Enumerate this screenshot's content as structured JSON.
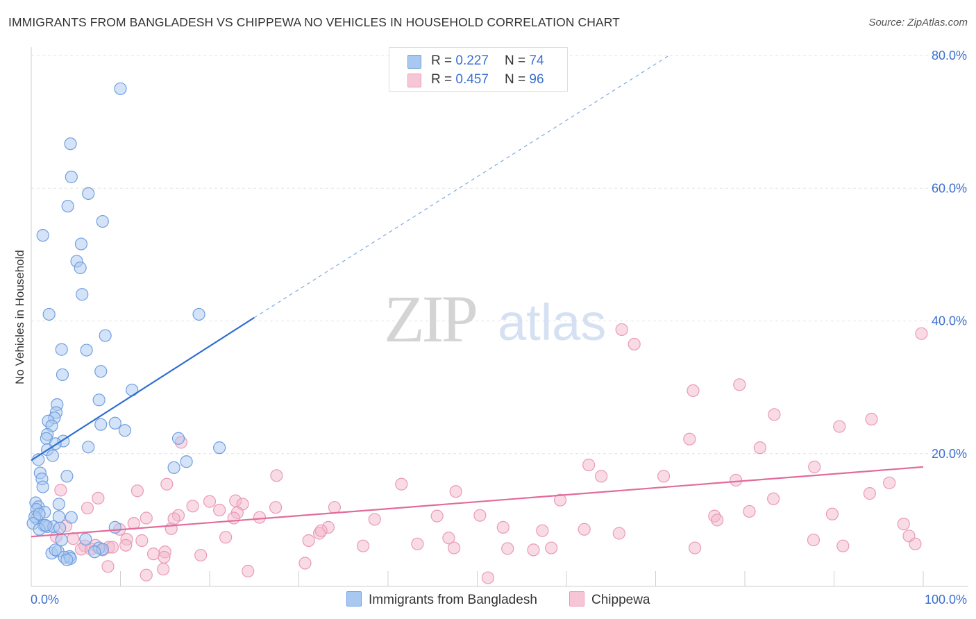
{
  "title": "IMMIGRANTS FROM BANGLADESH VS CHIPPEWA NO VEHICLES IN HOUSEHOLD CORRELATION CHART",
  "source": "Source: ZipAtlas.com",
  "watermark": {
    "zip": "ZIP",
    "atlas": "atlas"
  },
  "legend": {
    "rows": [
      {
        "r_label": "R =",
        "r_value": "0.227",
        "n_label": "N =",
        "n_value": "74"
      },
      {
        "r_label": "R =",
        "r_value": "0.457",
        "n_label": "N =",
        "n_value": "96"
      }
    ]
  },
  "chart_data": {
    "type": "scatter",
    "title": "IMMIGRANTS FROM BANGLADESH VS CHIPPEWA NO VEHICLES IN HOUSEHOLD CORRELATION CHART",
    "ylabel": "No Vehicles in Household",
    "xlabel": "",
    "xlim": [
      0,
      100
    ],
    "ylim": [
      0,
      80
    ],
    "x_tick_labels": [
      "0.0%",
      "100.0%"
    ],
    "y_ticks": [
      20,
      40,
      60,
      80
    ],
    "y_tick_labels": [
      "20.0%",
      "40.0%",
      "60.0%",
      "80.0%"
    ],
    "grid": true,
    "legend_position": "top-center",
    "colors": {
      "blue": "#3b78d8",
      "blue_fill": "#a9c8f0",
      "pink": "#e26b9a",
      "pink_fill": "#f4b8cc",
      "tick": "#3b6fd0"
    },
    "series": [
      {
        "name": "Immigrants from Bangladesh",
        "color": "blue",
        "r": 0.227,
        "n": 74,
        "trend": {
          "x0": 0,
          "y0": 19.0,
          "x1": 25.0,
          "y1": 40.5,
          "dash_to_x": 71.5,
          "dash_to_y": 80.0
        },
        "points": [
          [
            10,
            75
          ],
          [
            4.4,
            66.7
          ],
          [
            4.5,
            61.7
          ],
          [
            6.4,
            59.2
          ],
          [
            4.1,
            57.3
          ],
          [
            8,
            55
          ],
          [
            1.3,
            52.9
          ],
          [
            5.6,
            51.6
          ],
          [
            5.1,
            49
          ],
          [
            5.5,
            48
          ],
          [
            5.7,
            44
          ],
          [
            2,
            41
          ],
          [
            18.8,
            41
          ],
          [
            8.3,
            37.8
          ],
          [
            3.4,
            35.7
          ],
          [
            6.2,
            35.6
          ],
          [
            3.5,
            31.9
          ],
          [
            7.8,
            32.4
          ],
          [
            11.3,
            29.6
          ],
          [
            7.6,
            28.1
          ],
          [
            2.9,
            27.4
          ],
          [
            2.8,
            26.2
          ],
          [
            2.6,
            25.4
          ],
          [
            1.9,
            24.9
          ],
          [
            7.8,
            24.4
          ],
          [
            9.4,
            24.6
          ],
          [
            2.3,
            24.2
          ],
          [
            10.5,
            23.5
          ],
          [
            1.8,
            22.9
          ],
          [
            1.7,
            22.3
          ],
          [
            3.6,
            21.9
          ],
          [
            2.7,
            21.5
          ],
          [
            16.5,
            22.3
          ],
          [
            21.1,
            20.9
          ],
          [
            6.4,
            21
          ],
          [
            1.8,
            20.6
          ],
          [
            2.4,
            19.7
          ],
          [
            0.8,
            19.1
          ],
          [
            17.4,
            18.8
          ],
          [
            16,
            17.9
          ],
          [
            1,
            17.1
          ],
          [
            4,
            16.6
          ],
          [
            1.2,
            16.2
          ],
          [
            1.3,
            15
          ],
          [
            0.5,
            12.6
          ],
          [
            0.8,
            12
          ],
          [
            3.1,
            12.4
          ],
          [
            0.6,
            11.6
          ],
          [
            1.5,
            11.2
          ],
          [
            0.6,
            10.2
          ],
          [
            0.4,
            10.5
          ],
          [
            3.1,
            10.5
          ],
          [
            4.5,
            10.4
          ],
          [
            0.2,
            9.5
          ],
          [
            1.4,
            9.2
          ],
          [
            1.8,
            9.0
          ],
          [
            2.5,
            9
          ],
          [
            3.2,
            8.8
          ],
          [
            0.9,
            8.6
          ],
          [
            9.4,
            8.9
          ],
          [
            6.1,
            7.1
          ],
          [
            3.4,
            7.0
          ],
          [
            7.6,
            5.8
          ],
          [
            8.0,
            5.6
          ],
          [
            7.1,
            5.2
          ],
          [
            2.3,
            5.0
          ],
          [
            3.0,
            5.3
          ],
          [
            2.7,
            5.5
          ],
          [
            4.3,
            4.5
          ],
          [
            3.7,
            4.4
          ],
          [
            4.4,
            4.2
          ],
          [
            4.0,
            4.0
          ],
          [
            1.6,
            9.2
          ],
          [
            0.9,
            10.9
          ]
        ]
      },
      {
        "name": "Chippewa",
        "color": "pink",
        "r": 0.457,
        "n": 96,
        "trend": {
          "x0": 0,
          "y0": 7.5,
          "x1": 100,
          "y1": 18.0
        },
        "points": [
          [
            66.2,
            38.7
          ],
          [
            67.6,
            36.5
          ],
          [
            99.8,
            38.1
          ],
          [
            79.4,
            30.4
          ],
          [
            74.2,
            29.5
          ],
          [
            83.3,
            25.9
          ],
          [
            90.6,
            24.1
          ],
          [
            94.2,
            25.2
          ],
          [
            73.8,
            22.2
          ],
          [
            81.7,
            20.9
          ],
          [
            16.8,
            21.7
          ],
          [
            62.5,
            18.3
          ],
          [
            87.8,
            18.0
          ],
          [
            63.9,
            16.6
          ],
          [
            70.9,
            16.6
          ],
          [
            79.0,
            16.0
          ],
          [
            27.5,
            16.7
          ],
          [
            15.2,
            15.4
          ],
          [
            41.5,
            15.4
          ],
          [
            96.2,
            15.6
          ],
          [
            3.3,
            14.5
          ],
          [
            11.9,
            14.4
          ],
          [
            47.6,
            14.3
          ],
          [
            94.0,
            14.0
          ],
          [
            59.3,
            13.0
          ],
          [
            83.2,
            13.2
          ],
          [
            7.5,
            13.3
          ],
          [
            20.0,
            12.8
          ],
          [
            22.9,
            12.9
          ],
          [
            23.7,
            12.4
          ],
          [
            18.1,
            12.1
          ],
          [
            27.4,
            11.9
          ],
          [
            34.0,
            11.9
          ],
          [
            6.3,
            11.8
          ],
          [
            21.1,
            11.5
          ],
          [
            23.1,
            11.1
          ],
          [
            50.3,
            10.7
          ],
          [
            45.5,
            10.6
          ],
          [
            80.5,
            11.3
          ],
          [
            89.8,
            10.9
          ],
          [
            22.7,
            10.3
          ],
          [
            16.5,
            10.7
          ],
          [
            12.9,
            10.3
          ],
          [
            38.5,
            10.1
          ],
          [
            76.6,
            10.6
          ],
          [
            76.9,
            10.0
          ],
          [
            3.9,
            9.1
          ],
          [
            11.5,
            9.5
          ],
          [
            33.3,
            8.9
          ],
          [
            9.9,
            8.6
          ],
          [
            15.7,
            8.7
          ],
          [
            52.9,
            8.9
          ],
          [
            57.3,
            8.4
          ],
          [
            32.3,
            8.0
          ],
          [
            32.5,
            8.4
          ],
          [
            65.9,
            8.0
          ],
          [
            97.8,
            9.4
          ],
          [
            4.7,
            7.2
          ],
          [
            10.7,
            7.1
          ],
          [
            21.8,
            7.4
          ],
          [
            2.8,
            7.5
          ],
          [
            12.4,
            6.9
          ],
          [
            31.1,
            6.9
          ],
          [
            46.8,
            7.3
          ],
          [
            58.3,
            5.8
          ],
          [
            87.7,
            7.0
          ],
          [
            98.4,
            7.6
          ],
          [
            6.0,
            6.1
          ],
          [
            7.2,
            6.2
          ],
          [
            8.7,
            5.9
          ],
          [
            10.6,
            6.2
          ],
          [
            5.6,
            5.6
          ],
          [
            8.0,
            5.5
          ],
          [
            15.0,
            5.2
          ],
          [
            13.7,
            4.9
          ],
          [
            37.2,
            6.1
          ],
          [
            47.4,
            5.8
          ],
          [
            53.4,
            5.7
          ],
          [
            56.3,
            5.5
          ],
          [
            74.4,
            5.8
          ],
          [
            91.0,
            6.1
          ],
          [
            99.1,
            6.4
          ],
          [
            14.9,
            4.4
          ],
          [
            19.0,
            4.7
          ],
          [
            30.7,
            3.5
          ],
          [
            8.6,
            3.0
          ],
          [
            14.8,
            2.6
          ],
          [
            24.3,
            2.3
          ],
          [
            12.9,
            1.7
          ],
          [
            51.2,
            1.3
          ],
          [
            6.7,
            5.6
          ],
          [
            9.1,
            5.9
          ],
          [
            16.0,
            10.2
          ],
          [
            43.3,
            6.4
          ],
          [
            25.6,
            10.4
          ],
          [
            62.0,
            8.6
          ]
        ]
      }
    ]
  },
  "bottom_legend": [
    {
      "label": "Immigrants from Bangladesh"
    },
    {
      "label": "Chippewa"
    }
  ]
}
